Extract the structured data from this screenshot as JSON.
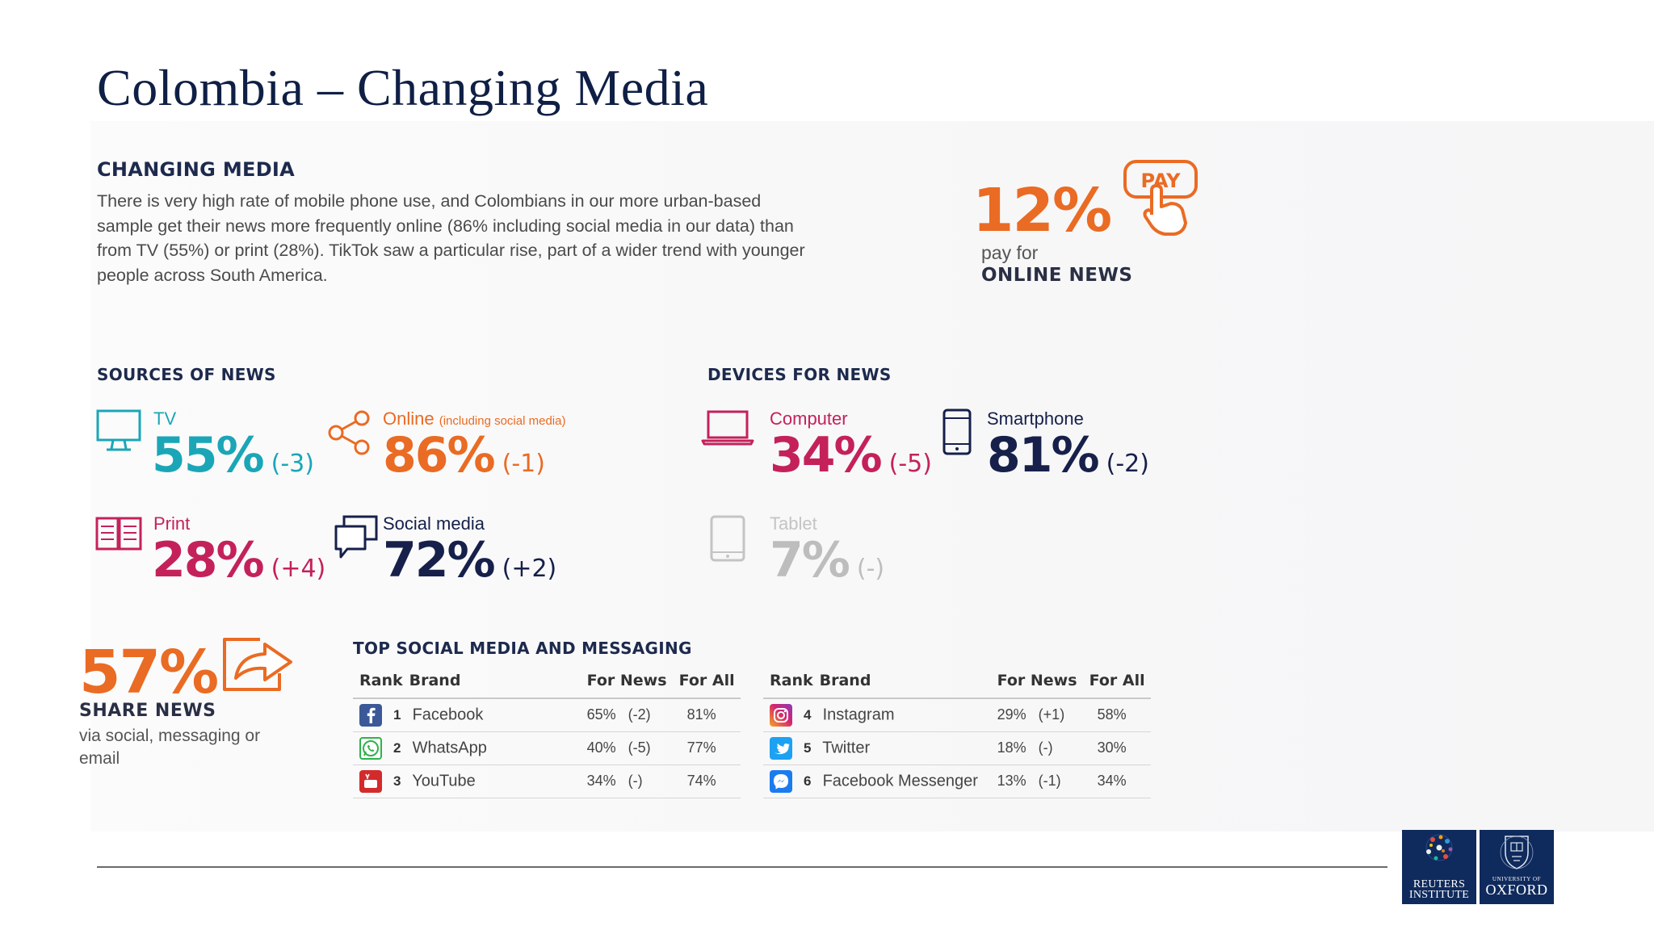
{
  "slide": {
    "title": "Colombia – Changing Media"
  },
  "intro": {
    "heading": "CHANGING MEDIA",
    "text": "There is very high rate of mobile phone use, and Colombians in our more urban-based sample get their news more frequently online (86% including social media in our data) than from TV (55%) or print (28%). TikTok saw a particular rise, part of a wider trend with younger people across South America."
  },
  "pay": {
    "value": "12%",
    "line1": "pay for",
    "line2": "ONLINE NEWS",
    "icon_label": "PAY"
  },
  "sources": {
    "heading": "SOURCES OF NEWS",
    "items": [
      {
        "label": "TV",
        "value": "55%",
        "delta": "(-3)"
      },
      {
        "label": "Online",
        "note": "(including social media)",
        "value": "86%",
        "delta": "(-1)"
      },
      {
        "label": "Print",
        "value": "28%",
        "delta": "(+4)"
      },
      {
        "label": "Social media",
        "value": "72%",
        "delta": "(+2)"
      }
    ]
  },
  "devices": {
    "heading": "DEVICES FOR NEWS",
    "items": [
      {
        "label": "Computer",
        "value": "34%",
        "delta": "(-5)"
      },
      {
        "label": "Smartphone",
        "value": "81%",
        "delta": "(-2)"
      },
      {
        "label": "Tablet",
        "value": "7%",
        "delta": "(-)"
      }
    ]
  },
  "share": {
    "value": "57%",
    "title": "SHARE NEWS",
    "sub": "via social, messaging or email"
  },
  "social": {
    "heading": "TOP SOCIAL MEDIA AND MESSAGING",
    "columns": [
      "Rank",
      "Brand",
      "For News",
      "For All"
    ],
    "left_rows": [
      {
        "rank": "1",
        "brand": "Facebook",
        "news": "65%",
        "delta": "(-2)",
        "all": "81%"
      },
      {
        "rank": "2",
        "brand": "WhatsApp",
        "news": "40%",
        "delta": "(-5)",
        "all": "77%"
      },
      {
        "rank": "3",
        "brand": "YouTube",
        "news": "34%",
        "delta": "(-)",
        "all": "74%"
      }
    ],
    "right_rows": [
      {
        "rank": "4",
        "brand": "Instagram",
        "news": "29%",
        "delta": "(+1)",
        "all": "58%"
      },
      {
        "rank": "5",
        "brand": "Twitter",
        "news": "18%",
        "delta": "(-)",
        "all": "30%"
      },
      {
        "rank": "6",
        "brand": "Facebook Messenger",
        "news": "13%",
        "delta": "(-1)",
        "all": "34%"
      }
    ]
  },
  "footer": {
    "reuters_l1": "REUTERS",
    "reuters_l2": "INSTITUTE",
    "oxford_l1": "UNIVERSITY OF",
    "oxford_l2": "OXFORD"
  },
  "colors": {
    "title": "#0f1f45",
    "orange": "#ea6b23",
    "teal": "#1aa6b7",
    "magenta": "#c4215a",
    "navy": "#16204a",
    "grey": "#bdbdbd"
  }
}
